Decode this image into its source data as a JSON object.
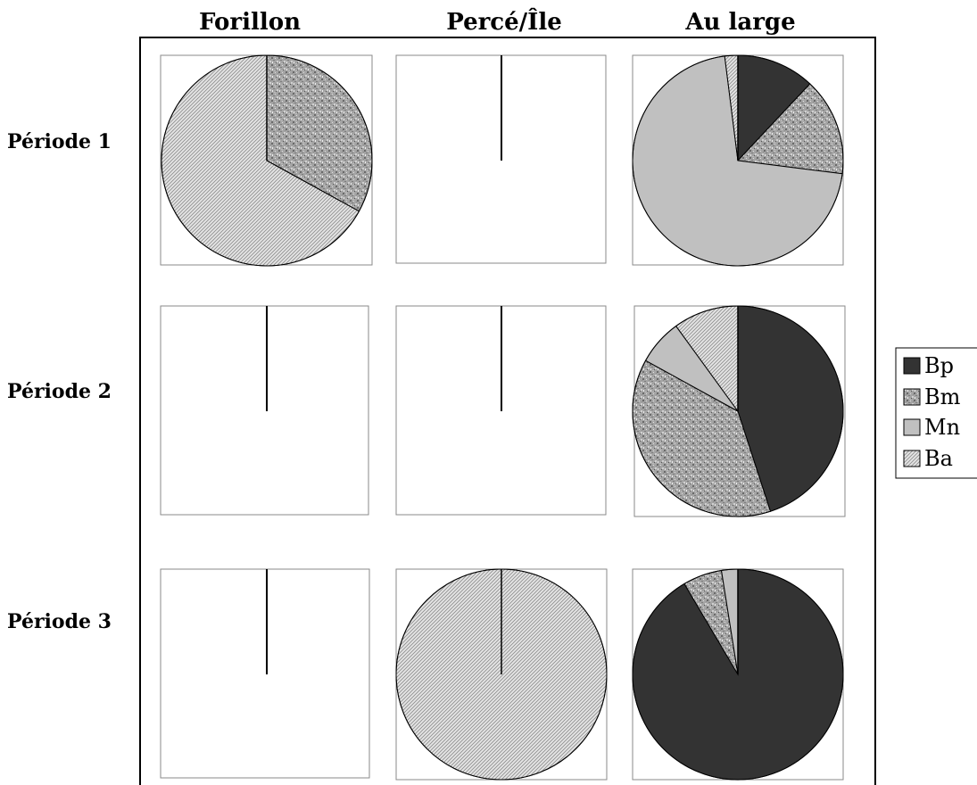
{
  "chart_data": {
    "type": "pie",
    "columns": [
      "Forillon",
      "Percé/Île",
      "Au large"
    ],
    "rows": [
      "Période 1",
      "Période 2",
      "Période 3"
    ],
    "categories": [
      "Bp",
      "Bm",
      "Mn",
      "Ba"
    ],
    "colors": {
      "Bp": "#333333",
      "Bm": "#a8a8a8",
      "Mn": "#c0c0c0",
      "Ba": "#d6d6d6"
    },
    "fills": {
      "Bp": "solid-dark",
      "Bm": "speckled",
      "Mn": "solid-light",
      "Ba": "diagonal-hatch"
    },
    "panels": [
      {
        "row": "Période 1",
        "column": "Forillon",
        "values": [
          0,
          33,
          0,
          67
        ]
      },
      {
        "row": "Période 1",
        "column": "Percé/Île",
        "values": [
          0,
          0,
          0,
          0
        ]
      },
      {
        "row": "Période 1",
        "column": "Au large",
        "values": [
          12,
          15,
          71,
          2
        ]
      },
      {
        "row": "Période 2",
        "column": "Forillon",
        "values": [
          0,
          0,
          0,
          0
        ]
      },
      {
        "row": "Période 2",
        "column": "Percé/Île",
        "values": [
          0,
          0,
          0,
          0
        ]
      },
      {
        "row": "Période 2",
        "column": "Au large",
        "values": [
          45,
          38,
          7,
          10
        ]
      },
      {
        "row": "Période 3",
        "column": "Forillon",
        "values": [
          0,
          0,
          0,
          0
        ]
      },
      {
        "row": "Période 3",
        "column": "Percé/Île",
        "values": [
          0,
          0,
          0,
          100
        ]
      },
      {
        "row": "Période 3",
        "column": "Au large",
        "values": [
          91.5,
          6,
          2.5,
          0
        ]
      }
    ],
    "legend": {
      "position": "right",
      "entries": [
        "Bp",
        "Bm",
        "Mn",
        "Ba"
      ]
    },
    "title": "",
    "xlabel": "",
    "ylabel": ""
  }
}
